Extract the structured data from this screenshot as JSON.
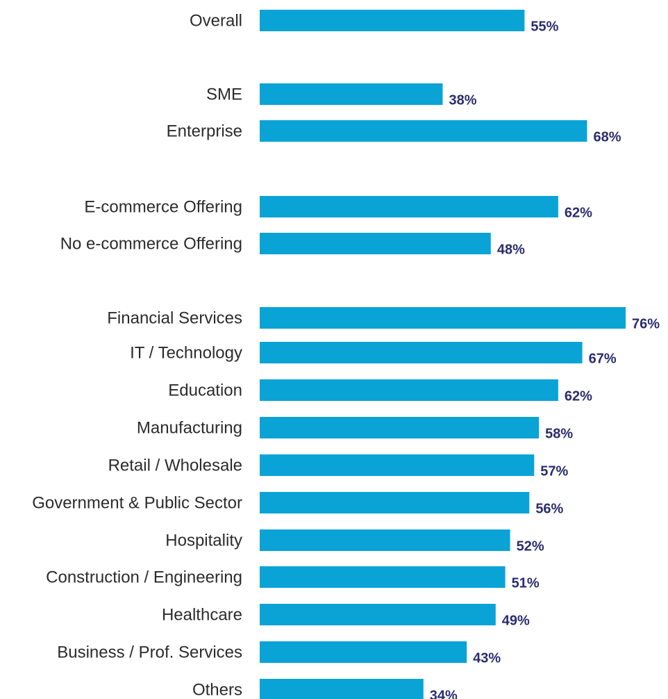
{
  "chart_data": {
    "type": "bar",
    "orientation": "horizontal",
    "categories": [
      "Overall",
      "SME",
      "Enterprise",
      "E-commerce Offering",
      "No e-commerce Offering",
      "Financial Services",
      "IT / Technology",
      "Education",
      "Manufacturing",
      "Retail / Wholesale",
      "Government & Public Sector",
      "Hospitality",
      "Construction / Engineering",
      "Healthcare",
      "Business / Prof. Services",
      "Others"
    ],
    "values": [
      55,
      38,
      68,
      62,
      48,
      76,
      67,
      62,
      58,
      57,
      56,
      52,
      51,
      49,
      43,
      34
    ],
    "value_labels": [
      "55%",
      "38%",
      "68%",
      "62%",
      "48%",
      "76%",
      "67%",
      "62%",
      "58%",
      "57%",
      "56%",
      "52%",
      "51%",
      "49%",
      "43%",
      "34%"
    ],
    "xlim": [
      0,
      76
    ],
    "grid": false,
    "colors": {
      "bar": "#0aa3d6",
      "value_label": "#2a2d6e",
      "category_label": "#2b2b2b"
    }
  }
}
